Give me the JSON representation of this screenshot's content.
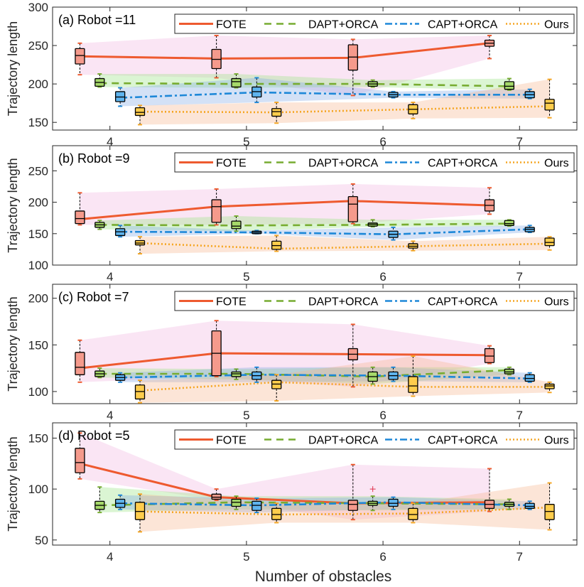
{
  "chart_data": {
    "type": "box",
    "xlabel": "Number of obstacles",
    "ylabel": "Trajectory length",
    "x": [
      4,
      5,
      6,
      7
    ],
    "x_tick_labels": [
      "4",
      "5",
      "6",
      "7"
    ],
    "legend": [
      "FOTE",
      "DAPT+ORCA",
      "CAPT+ORCA",
      "Ours"
    ],
    "colors": {
      "FOTE": "#ee5a2f",
      "DAPT+ORCA": "#77ac30",
      "CAPT+ORCA": "#1e88d8",
      "Ours": "#f5a623"
    },
    "panels": [
      {
        "title": "(a) Robot =11",
        "ylim": [
          140,
          300
        ],
        "yticks": [
          150,
          200,
          250,
          300
        ],
        "series": [
          {
            "name": "FOTE",
            "values": [
              236,
              233,
              234,
              253
            ],
            "boxes": [
              [
                212,
                226,
                237,
                246,
                253
              ],
              [
                208,
                220,
                232,
                245,
                263
              ],
              [
                185,
                218,
                235,
                251,
                258
              ],
              [
                233,
                249,
                253,
                257,
                263
              ]
            ]
          },
          {
            "name": "DAPT+ORCA",
            "values": [
              201,
              200,
              200,
              197
            ],
            "boxes": [
              [
                196,
                197,
                202,
                207,
                213
              ],
              [
                195,
                196,
                203,
                207,
                213
              ],
              [
                196,
                197,
                200,
                203,
                205
              ],
              [
                192,
                193,
                197,
                203,
                207
              ]
            ]
          },
          {
            "name": "CAPT+ORCA",
            "values": [
              182,
              189,
              186,
              186
            ],
            "boxes": [
              [
                171,
                177,
                183,
                190,
                195
              ],
              [
                176,
                183,
                190,
                196,
                208
              ],
              [
                182,
                183,
                186,
                189,
                190
              ],
              [
                181,
                182,
                186,
                190,
                193
              ]
            ]
          },
          {
            "name": "Ours",
            "values": [
              164,
              163,
              167,
              171
            ],
            "boxes": [
              [
                147,
                159,
                163,
                169,
                172
              ],
              [
                149,
                158,
                164,
                168,
                176
              ],
              [
                155,
                161,
                167,
                173,
                176
              ],
              [
                156,
                166,
                175,
                180,
                206
              ]
            ]
          }
        ]
      },
      {
        "title": "(b) Robot =9",
        "ylim": [
          100,
          290
        ],
        "yticks": [
          100,
          150,
          200,
          250
        ],
        "series": [
          {
            "name": "FOTE",
            "values": [
              173,
              193,
              202,
              195
            ],
            "boxes": [
              [
                164,
                166,
                174,
                186,
                215
              ],
              [
                164,
                168,
                193,
                204,
                221
              ],
              [
                166,
                169,
                197,
                209,
                229
              ],
              [
                181,
                186,
                195,
                204,
                223
              ]
            ]
          },
          {
            "name": "DAPT+ORCA",
            "values": [
              164,
              163,
              164,
              166
            ],
            "boxes": [
              [
                157,
                160,
                164,
                168,
                171
              ],
              [
                154,
                158,
                162,
                170,
                178
              ],
              [
                161,
                162,
                165,
                167,
                172
              ],
              [
                162,
                163,
                166,
                171,
                172
              ]
            ]
          },
          {
            "name": "CAPT+ORCA",
            "values": [
              153,
              152,
              149,
              157
            ],
            "boxes": [
              [
                145,
                147,
                153,
                158,
                163
              ],
              [
                150,
                150,
                152,
                154,
                155
              ],
              [
                140,
                144,
                149,
                154,
                160
              ],
              [
                152,
                153,
                157,
                160,
                163
              ]
            ]
          },
          {
            "name": "Ours",
            "values": [
              135,
              126,
              130,
              134
            ],
            "boxes": [
              [
                118,
                132,
                135,
                139,
                145
              ],
              [
                122,
                125,
                131,
                138,
                147
              ],
              [
                123,
                127,
                130,
                134,
                138
              ],
              [
                124,
                131,
                136,
                143,
                145
              ]
            ]
          }
        ]
      },
      {
        "title": "(c) Robot =7",
        "ylim": [
          87,
          215
        ],
        "yticks": [
          100,
          150,
          200
        ],
        "series": [
          {
            "name": "FOTE",
            "values": [
              125,
              141,
              140,
              139
            ],
            "boxes": [
              [
                110,
                118,
                126,
                142,
                155
              ],
              [
                116,
                117,
                141,
                165,
                176
              ],
              [
                105,
                134,
                140,
                146,
                172
              ],
              [
                130,
                131,
                138,
                146,
                149
              ]
            ]
          },
          {
            "name": "DAPT+ORCA",
            "values": [
              119,
              119,
              116,
              123
            ],
            "boxes": [
              [
                115,
                116,
                119,
                122,
                125
              ],
              [
                113,
                116,
                119,
                121,
                124
              ],
              [
                108,
                111,
                116,
                121,
                126
              ],
              [
                118,
                119,
                121,
                124,
                126
              ]
            ]
          },
          {
            "name": "CAPT+ORCA",
            "values": [
              115,
              118,
              117,
              114
            ],
            "boxes": [
              [
                110,
                112,
                115,
                118,
                120
              ],
              [
                110,
                113,
                117,
                121,
                126
              ],
              [
                111,
                113,
                117,
                121,
                126
              ],
              [
                110,
                111,
                114,
                118,
                120
              ]
            ]
          },
          {
            "name": "Ours",
            "values": [
              101,
              110,
              105,
              105
            ],
            "boxes": [
              [
                88,
                92,
                100,
                107,
                112
              ],
              [
                90,
                103,
                108,
                112,
                118
              ],
              [
                95,
                99,
                106,
                116,
                138
              ],
              [
                99,
                103,
                106,
                108,
                110
              ]
            ]
          }
        ]
      },
      {
        "title": "(d) Robot =5",
        "ylim": [
          45,
          165
        ],
        "yticks": [
          50,
          100,
          150
        ],
        "series": [
          {
            "name": "FOTE",
            "values": [
              125,
              92,
              86,
              87
            ],
            "boxes": [
              [
                110,
                116,
                126,
                140,
                155
              ],
              [
                89,
                90,
                92,
                95,
                100
              ],
              [
                70,
                79,
                85,
                89,
                124
              ],
              [
                78,
                81,
                85,
                89,
                120
              ]
            ]
          },
          {
            "name": "DAPT+ORCA",
            "values": [
              84,
              87,
              86,
              85
            ],
            "boxes": [
              [
                77,
                80,
                84,
                88,
                102
              ],
              [
                80,
                83,
                87,
                90,
                93
              ],
              [
                79,
                84,
                86,
                88,
                93
              ],
              [
                80,
                83,
                85,
                87,
                90
              ]
            ]
          },
          {
            "name": "CAPT+ORCA",
            "values": [
              86,
              84,
              87,
              84
            ],
            "boxes": [
              [
                80,
                82,
                86,
                90,
                94
              ],
              [
                77,
                79,
                84,
                88,
                91
              ],
              [
                80,
                83,
                86,
                90,
                92
              ],
              [
                80,
                81,
                83,
                86,
                88
              ]
            ]
          },
          {
            "name": "Ours",
            "values": [
              78,
              75,
              76,
              82
            ],
            "boxes": [
              [
                58,
                70,
                78,
                87,
                95
              ],
              [
                67,
                70,
                75,
                81,
                86
              ],
              [
                67,
                70,
                75,
                81,
                86
              ],
              [
                60,
                70,
                78,
                85,
                106
              ]
            ]
          }
        ],
        "outliers": [
          {
            "series": "DAPT+ORCA",
            "x": 6,
            "y": 100
          }
        ]
      }
    ]
  }
}
